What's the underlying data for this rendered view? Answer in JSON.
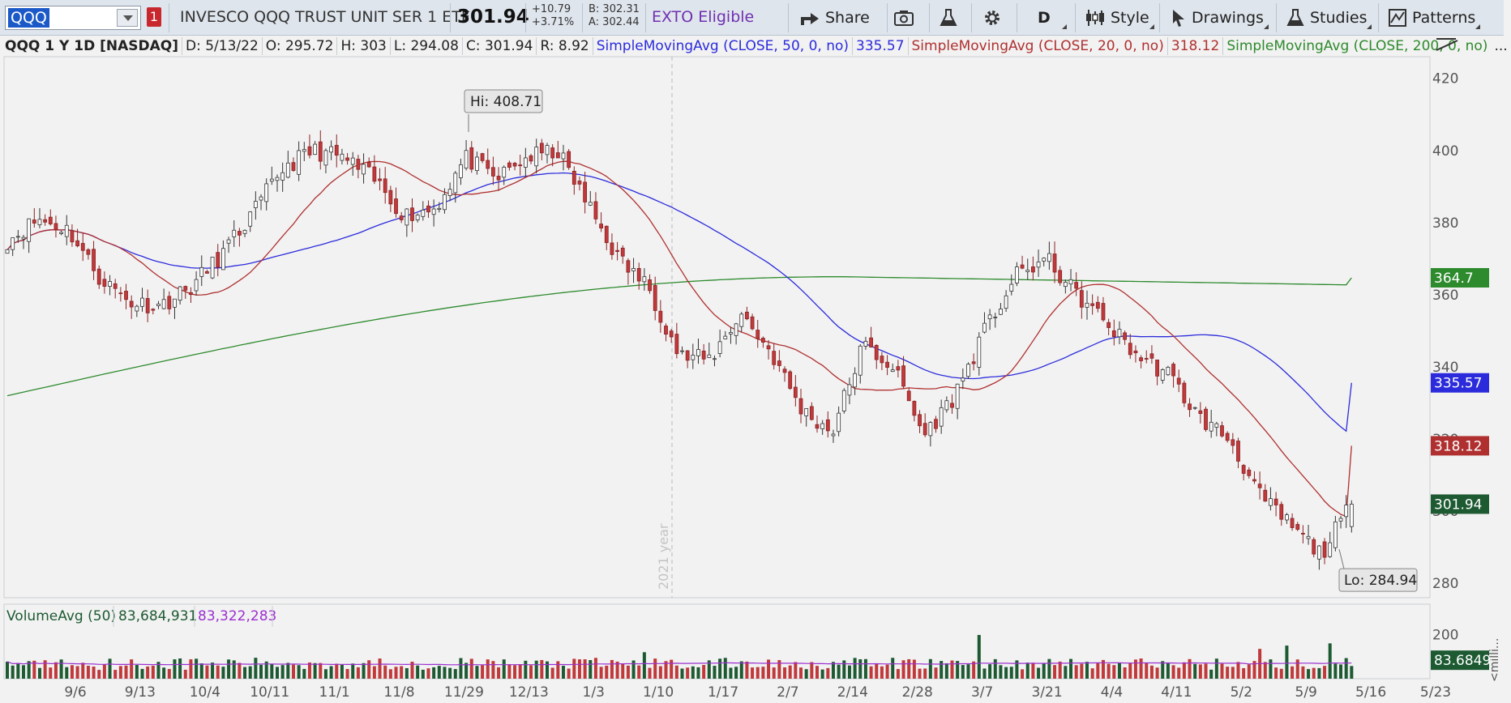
{
  "toolbar": {
    "symbol": "QQQ",
    "link_number": "1",
    "description": "INVESCO QQQ TRUST UNIT SER 1 ETF",
    "last": "301.94",
    "change": "+10.79",
    "change_pct": "+3.71%",
    "bid": "B: 302.31",
    "ask": "A: 302.44",
    "exto": "EXTO Eligible",
    "share_label": "Share",
    "period_label": "D",
    "style_label": "Style",
    "drawings_label": "Drawings",
    "studies_label": "Studies",
    "patterns_label": "Patterns"
  },
  "info_bar": {
    "symbol": "QQQ 1 Y 1D [NASDAQ]",
    "date": "D: 5/13/22",
    "open": "O: 295.72",
    "high": "H: 303",
    "low": "L: 294.08",
    "close": "C: 301.94",
    "range": "R: 8.92",
    "sma50_label": "SimpleMovingAvg (CLOSE, 50, 0, no)",
    "sma50_value": "335.57",
    "sma20_label": "SimpleMovingAvg (CLOSE, 20, 0, no)",
    "sma20_value": "318.12",
    "sma200_label": "SimpleMovingAvg (CLOSE, 200, 0, no)",
    "more": "..."
  },
  "colors": {
    "up_candle": "#ffffff",
    "down_candle": "#c0393b",
    "sma50": "#2b2bdc",
    "sma20": "#b03030",
    "sma200": "#2d8a2d",
    "volume_up": "#1d5a32",
    "volume_down": "#c0393b",
    "volume_avg": "#9b30d0"
  },
  "chart_data": {
    "type": "candlestick",
    "price_ticks": [
      280,
      300,
      320,
      340,
      360,
      380,
      400,
      420
    ],
    "y_range": [
      276,
      426
    ],
    "x_labels": [
      "9/6",
      "9/13",
      "10/4",
      "10/11",
      "11/1",
      "11/8",
      "11/29",
      "12/13",
      "1/3",
      "1/10",
      "1/17",
      "2/7",
      "2/14",
      "2/28",
      "3/7",
      "3/21",
      "4/4",
      "4/11",
      "5/2",
      "5/9",
      "5/16",
      "5/23"
    ],
    "year_marker": "2021 year",
    "hi_label": "Hi: 408.71",
    "lo_label": "Lo: 284.94",
    "price_tags": {
      "sma200": "364.7",
      "sma50": "335.57",
      "sma20": "318.12",
      "last": "301.94"
    },
    "waypoints": [
      375,
      381,
      378,
      365,
      358,
      357,
      362,
      371,
      382,
      395,
      400,
      398,
      392,
      382,
      384,
      398,
      392,
      398,
      400,
      385,
      370,
      362,
      343,
      342,
      355,
      344,
      328,
      322,
      346,
      340,
      321,
      332,
      350,
      365,
      370,
      360,
      352,
      343,
      338,
      326,
      320,
      304,
      296,
      288,
      302
    ],
    "volume_panel": {
      "label": "VolumeAvg (50)",
      "volume": "83,684,931",
      "average": "83,322,283",
      "ticks": [
        200
      ],
      "y_range": [
        0,
        220
      ],
      "last_tag": "83.6849",
      "unit_label": "<milli..."
    }
  }
}
